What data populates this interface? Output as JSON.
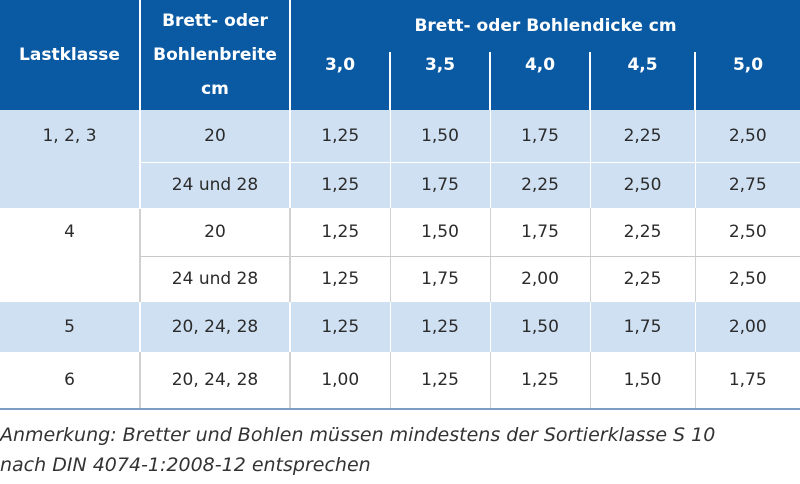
{
  "header": {
    "lastklasse": "Lastklasse",
    "breite_line1": "Brett- oder",
    "breite_line2": "Bohlenbreite",
    "breite_line3": "cm",
    "dicke_title": "Brett- oder Bohlendicke cm",
    "dicken": [
      "3,0",
      "3,5",
      "4,0",
      "4,5",
      "5,0"
    ]
  },
  "rows": [
    {
      "lastklasse": "1, 2, 3",
      "breite": "20",
      "values": [
        "1,25",
        "1,50",
        "1,75",
        "2,25",
        "2,50"
      ]
    },
    {
      "lastklasse": "",
      "breite": "24 und 28",
      "values": [
        "1,25",
        "1,75",
        "2,25",
        "2,50",
        "2,75"
      ]
    },
    {
      "lastklasse": "4",
      "breite": "20",
      "values": [
        "1,25",
        "1,50",
        "1,75",
        "2,25",
        "2,50"
      ]
    },
    {
      "lastklasse": "",
      "breite": "24 und 28",
      "values": [
        "1,25",
        "1,75",
        "2,00",
        "2,25",
        "2,50"
      ]
    },
    {
      "lastklasse": "5",
      "breite": "20, 24, 28",
      "values": [
        "1,25",
        "1,25",
        "1,50",
        "1,75",
        "2,00"
      ]
    },
    {
      "lastklasse": "6",
      "breite": "20, 24, 28",
      "values": [
        "1,00",
        "1,25",
        "1,25",
        "1,50",
        "1,75"
      ]
    }
  ],
  "note": {
    "line1": "Anmerkung: Bretter und Bohlen müssen mindestens der Sortierklasse S 10",
    "line2": "nach DIN 4074-1:2008-12 entsprechen"
  }
}
